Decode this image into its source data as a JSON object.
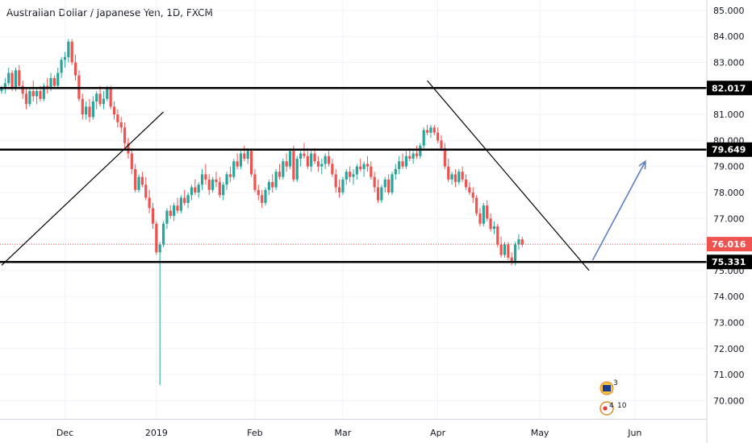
{
  "title": "Australian Dollar / Japanese Yen, 1D, FXCM",
  "chart_data": {
    "type": "candlestick",
    "symbol": "AUDJPY",
    "interval": "1D",
    "ylim": [
      69.3,
      85.4
    ],
    "y_ticks": [
      "85.000",
      "84.000",
      "83.000",
      "82.000",
      "81.000",
      "80.000",
      "79.000",
      "78.000",
      "77.000",
      "76.000",
      "75.000",
      "74.000",
      "73.000",
      "72.000",
      "71.000",
      "70.000"
    ],
    "x_ticks": [
      "Dec",
      "2019",
      "Feb",
      "Mar",
      "Apr",
      "May",
      "Jun"
    ],
    "colors": {
      "up": "#26a69a",
      "down": "#ef5350",
      "level": "#000000",
      "current": "#ef5350",
      "arrow": "#5b7fbf"
    },
    "levels": [
      {
        "value": 82.017,
        "label": "82.017"
      },
      {
        "value": 79.649,
        "label": "79.649"
      },
      {
        "value": 75.331,
        "label": "75.331"
      }
    ],
    "current_price": {
      "value": 76.016,
      "label": "76.016"
    },
    "trendlines": [
      {
        "from": {
          "bar": 0,
          "price": 75.2
        },
        "to": {
          "bar": 46,
          "price": 81.1
        }
      },
      {
        "from": {
          "bar": 121,
          "price": 82.3
        },
        "to": {
          "bar": 167,
          "price": 75.0
        }
      }
    ],
    "projection_arrow": {
      "from": {
        "bar": 168,
        "price": 75.4
      },
      "to": {
        "bar": 183,
        "price": 79.2
      }
    },
    "event_badges": [
      "3",
      "4",
      "10"
    ],
    "candles": [
      [
        81.9,
        82.1,
        81.8,
        82.0
      ],
      [
        82.0,
        82.4,
        81.8,
        82.2
      ],
      [
        82.2,
        82.8,
        82.1,
        82.6
      ],
      [
        82.6,
        82.7,
        81.9,
        82.0
      ],
      [
        82.0,
        82.8,
        81.9,
        82.7
      ],
      [
        82.7,
        82.9,
        82.0,
        82.1
      ],
      [
        82.1,
        82.3,
        81.6,
        81.8
      ],
      [
        81.8,
        82.0,
        81.2,
        81.4
      ],
      [
        81.4,
        82.0,
        81.3,
        81.9
      ],
      [
        81.9,
        82.3,
        81.5,
        81.7
      ],
      [
        81.7,
        82.0,
        81.4,
        81.9
      ],
      [
        81.9,
        82.1,
        81.5,
        81.6
      ],
      [
        81.6,
        82.2,
        81.5,
        82.1
      ],
      [
        82.1,
        82.4,
        81.8,
        82.0
      ],
      [
        82.0,
        82.6,
        81.9,
        82.4
      ],
      [
        82.4,
        82.5,
        82.0,
        82.1
      ],
      [
        82.1,
        82.8,
        82.0,
        82.6
      ],
      [
        82.6,
        83.2,
        82.4,
        83.1
      ],
      [
        83.1,
        83.4,
        82.8,
        83.2
      ],
      [
        83.2,
        83.9,
        83.0,
        83.8
      ],
      [
        83.8,
        83.9,
        82.9,
        83.0
      ],
      [
        83.0,
        83.3,
        82.3,
        82.5
      ],
      [
        82.5,
        82.7,
        81.5,
        81.6
      ],
      [
        81.6,
        81.8,
        80.8,
        81.0
      ],
      [
        81.0,
        81.5,
        80.8,
        81.3
      ],
      [
        81.3,
        81.6,
        80.7,
        80.9
      ],
      [
        80.9,
        81.7,
        80.8,
        81.5
      ],
      [
        81.5,
        81.9,
        81.2,
        81.8
      ],
      [
        81.8,
        82.1,
        81.3,
        81.4
      ],
      [
        81.4,
        81.9,
        81.2,
        81.6
      ],
      [
        81.6,
        82.1,
        81.5,
        82.0
      ],
      [
        82.0,
        82.1,
        81.2,
        81.3
      ],
      [
        81.3,
        81.5,
        80.8,
        81.0
      ],
      [
        81.0,
        81.2,
        80.5,
        80.7
      ],
      [
        80.7,
        80.9,
        80.3,
        80.5
      ],
      [
        80.5,
        80.7,
        79.7,
        79.9
      ],
      [
        79.9,
        80.1,
        79.3,
        79.5
      ],
      [
        79.5,
        79.7,
        78.7,
        78.9
      ],
      [
        78.9,
        79.1,
        78.0,
        78.1
      ],
      [
        78.1,
        78.7,
        78.0,
        78.6
      ],
      [
        78.6,
        78.8,
        78.2,
        78.3
      ],
      [
        78.3,
        78.6,
        77.7,
        77.8
      ],
      [
        77.8,
        78.1,
        77.2,
        77.4
      ],
      [
        77.4,
        77.6,
        76.6,
        76.8
      ],
      [
        76.8,
        76.9,
        75.6,
        75.7
      ],
      [
        75.7,
        76.1,
        70.6,
        76.0
      ],
      [
        76.0,
        76.9,
        75.9,
        76.8
      ],
      [
        76.8,
        77.4,
        76.6,
        77.3
      ],
      [
        77.3,
        77.5,
        77.0,
        77.1
      ],
      [
        77.1,
        77.6,
        76.9,
        77.5
      ],
      [
        77.5,
        77.8,
        77.2,
        77.3
      ],
      [
        77.3,
        77.9,
        77.2,
        77.8
      ],
      [
        77.8,
        78.1,
        77.5,
        77.6
      ],
      [
        77.6,
        78.0,
        77.4,
        77.9
      ],
      [
        77.9,
        78.3,
        77.7,
        78.2
      ],
      [
        78.2,
        78.5,
        77.9,
        78.0
      ],
      [
        78.0,
        78.4,
        77.8,
        78.3
      ],
      [
        78.3,
        78.9,
        78.1,
        78.7
      ],
      [
        78.7,
        79.1,
        78.3,
        78.5
      ],
      [
        78.5,
        78.7,
        77.9,
        78.1
      ],
      [
        78.1,
        78.6,
        78.0,
        78.5
      ],
      [
        78.5,
        78.8,
        78.2,
        78.4
      ],
      [
        78.4,
        78.6,
        77.8,
        77.9
      ],
      [
        77.9,
        78.4,
        77.7,
        78.3
      ],
      [
        78.3,
        78.8,
        78.1,
        78.7
      ],
      [
        78.7,
        79.0,
        78.4,
        78.6
      ],
      [
        78.6,
        79.3,
        78.5,
        79.2
      ],
      [
        79.2,
        79.5,
        78.9,
        79.0
      ],
      [
        79.0,
        79.6,
        78.9,
        79.5
      ],
      [
        79.5,
        79.8,
        79.2,
        79.3
      ],
      [
        79.3,
        79.7,
        79.1,
        79.6
      ],
      [
        79.6,
        79.7,
        78.6,
        78.7
      ],
      [
        78.7,
        78.9,
        78.0,
        78.1
      ],
      [
        78.1,
        78.3,
        77.7,
        77.9
      ],
      [
        77.9,
        78.1,
        77.4,
        77.6
      ],
      [
        77.6,
        78.2,
        77.5,
        78.1
      ],
      [
        78.1,
        78.5,
        77.9,
        78.4
      ],
      [
        78.4,
        78.7,
        78.0,
        78.2
      ],
      [
        78.2,
        78.9,
        78.1,
        78.8
      ],
      [
        78.8,
        79.1,
        78.5,
        78.6
      ],
      [
        78.6,
        79.3,
        78.5,
        79.2
      ],
      [
        79.2,
        79.5,
        78.8,
        79.0
      ],
      [
        79.0,
        79.7,
        78.9,
        79.6
      ],
      [
        79.6,
        79.8,
        78.4,
        78.5
      ],
      [
        78.5,
        79.4,
        78.4,
        79.3
      ],
      [
        79.3,
        79.6,
        79.0,
        79.5
      ],
      [
        79.5,
        79.9,
        79.3,
        79.4
      ],
      [
        79.4,
        79.7,
        78.9,
        79.0
      ],
      [
        79.0,
        79.6,
        78.8,
        79.5
      ],
      [
        79.5,
        79.7,
        79.1,
        79.2
      ],
      [
        79.2,
        79.4,
        78.8,
        79.0
      ],
      [
        79.0,
        79.3,
        78.7,
        79.1
      ],
      [
        79.1,
        79.5,
        78.9,
        79.4
      ],
      [
        79.4,
        79.6,
        79.0,
        79.1
      ],
      [
        79.1,
        79.3,
        78.6,
        78.7
      ],
      [
        78.7,
        78.9,
        78.0,
        78.2
      ],
      [
        78.2,
        78.5,
        77.8,
        78.0
      ],
      [
        78.0,
        78.6,
        77.9,
        78.5
      ],
      [
        78.5,
        78.9,
        78.3,
        78.8
      ],
      [
        78.8,
        79.0,
        78.4,
        78.6
      ],
      [
        78.6,
        78.9,
        78.3,
        78.7
      ],
      [
        78.7,
        79.1,
        78.5,
        79.0
      ],
      [
        79.0,
        79.3,
        78.8,
        78.9
      ],
      [
        78.9,
        79.2,
        78.6,
        79.1
      ],
      [
        79.1,
        79.4,
        78.8,
        79.0
      ],
      [
        79.0,
        79.2,
        78.5,
        78.6
      ],
      [
        78.6,
        78.8,
        78.0,
        78.2
      ],
      [
        78.2,
        78.5,
        77.6,
        77.7
      ],
      [
        77.7,
        78.3,
        77.6,
        78.2
      ],
      [
        78.2,
        78.6,
        78.0,
        78.5
      ],
      [
        78.5,
        78.7,
        77.9,
        78.0
      ],
      [
        78.0,
        78.8,
        77.9,
        78.7
      ],
      [
        78.7,
        79.1,
        78.5,
        78.9
      ],
      [
        78.9,
        79.4,
        78.7,
        79.2
      ],
      [
        79.2,
        79.5,
        78.9,
        79.0
      ],
      [
        79.0,
        79.6,
        78.9,
        79.4
      ],
      [
        79.4,
        79.7,
        79.2,
        79.3
      ],
      [
        79.3,
        79.6,
        79.1,
        79.5
      ],
      [
        79.5,
        79.8,
        79.3,
        79.4
      ],
      [
        79.4,
        79.9,
        79.3,
        79.8
      ],
      [
        79.8,
        80.5,
        79.7,
        80.4
      ],
      [
        80.4,
        80.6,
        80.2,
        80.3
      ],
      [
        80.3,
        80.6,
        80.1,
        80.5
      ],
      [
        80.5,
        80.6,
        80.2,
        80.3
      ],
      [
        80.3,
        80.5,
        79.9,
        80.0
      ],
      [
        80.0,
        80.2,
        79.6,
        79.7
      ],
      [
        79.7,
        79.9,
        78.9,
        79.0
      ],
      [
        79.0,
        79.3,
        78.4,
        78.5
      ],
      [
        78.5,
        78.8,
        78.3,
        78.7
      ],
      [
        78.7,
        78.9,
        78.2,
        78.4
      ],
      [
        78.4,
        78.9,
        78.3,
        78.8
      ],
      [
        78.8,
        79.0,
        78.4,
        78.5
      ],
      [
        78.5,
        78.7,
        78.1,
        78.2
      ],
      [
        78.2,
        78.4,
        77.9,
        78.0
      ],
      [
        78.0,
        78.2,
        77.6,
        77.8
      ],
      [
        77.8,
        77.9,
        77.1,
        77.2
      ],
      [
        77.2,
        77.4,
        76.7,
        76.8
      ],
      [
        76.8,
        77.6,
        76.7,
        77.5
      ],
      [
        77.5,
        77.7,
        76.9,
        77.0
      ],
      [
        77.0,
        77.2,
        76.5,
        76.6
      ],
      [
        76.6,
        76.9,
        76.4,
        76.7
      ],
      [
        76.7,
        76.8,
        75.9,
        76.0
      ],
      [
        76.0,
        76.3,
        75.5,
        75.6
      ],
      [
        75.6,
        76.1,
        75.5,
        76.0
      ],
      [
        76.0,
        76.1,
        75.4,
        75.5
      ],
      [
        75.5,
        75.7,
        75.2,
        75.3
      ],
      [
        75.3,
        76.1,
        75.2,
        76.0
      ],
      [
        76.0,
        76.4,
        75.8,
        76.2
      ],
      [
        76.2,
        76.3,
        75.9,
        76.0
      ]
    ]
  }
}
